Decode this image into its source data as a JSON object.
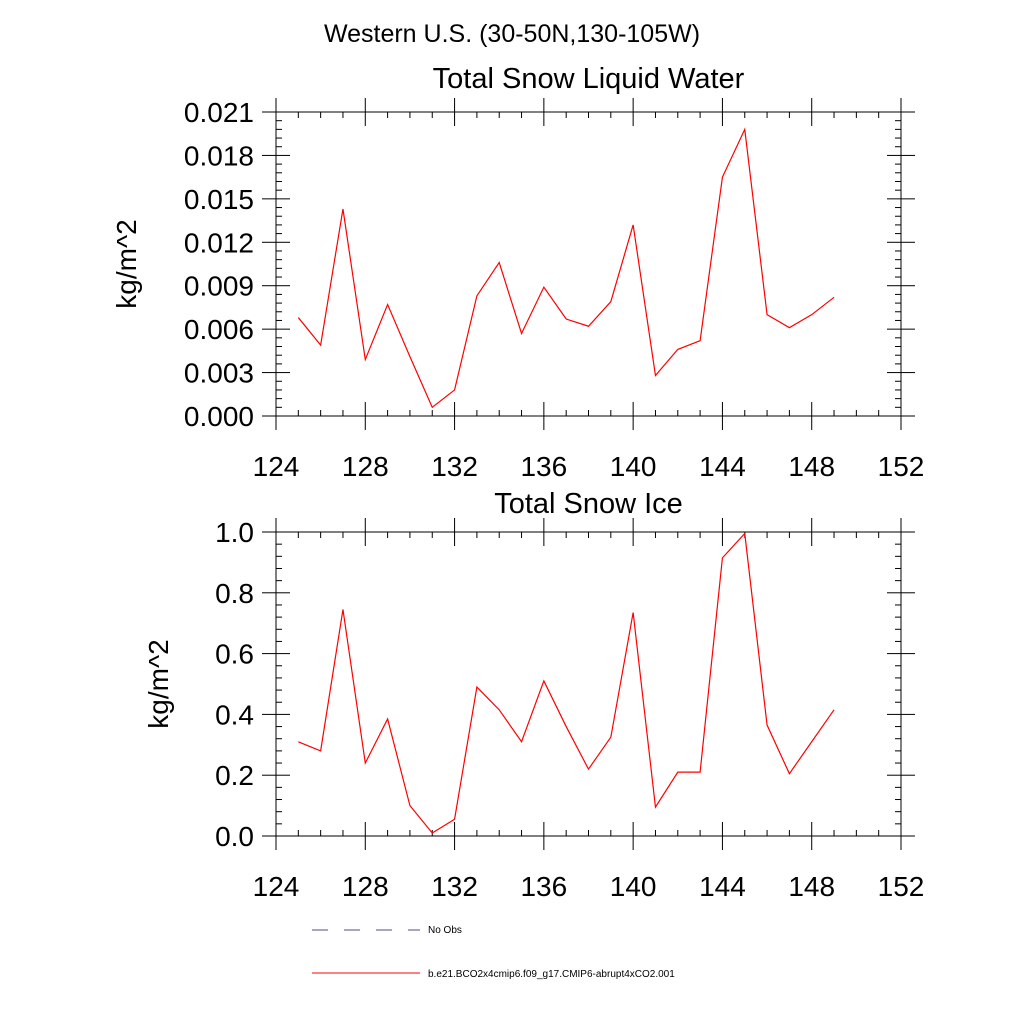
{
  "figure": {
    "suptitle": "Western U.S. (30-50N,130-105W)"
  },
  "chart_data": [
    {
      "type": "line",
      "title": "Total Snow Liquid Water",
      "xlabel": "",
      "ylabel": "kg/m^2",
      "xlim": [
        124,
        152
      ],
      "ylim": [
        0,
        0.021
      ],
      "xticks": [
        124,
        128,
        132,
        136,
        140,
        144,
        148,
        152
      ],
      "xtick_labels": [
        "124",
        "128",
        "132",
        "136",
        "140",
        "144",
        "148",
        "152"
      ],
      "yticks": [
        0,
        0.003,
        0.006,
        0.009,
        0.012,
        0.015,
        0.018,
        0.021
      ],
      "ytick_labels": [
        "0.000",
        "0.003",
        "0.006",
        "0.009",
        "0.012",
        "0.015",
        "0.018",
        "0.021"
      ],
      "x_minor_step": 1,
      "y_minor_step": 0.0006,
      "series": [
        {
          "name": "b.e21.BCO2x4cmip6.f09_g17.CMIP6-abrupt4xCO2.001",
          "color": "#ff0000",
          "x": [
            125,
            126,
            127,
            128,
            129,
            130,
            131,
            132,
            133,
            134,
            135,
            136,
            137,
            138,
            139,
            140,
            141,
            142,
            143,
            144,
            145,
            146,
            147,
            148,
            149
          ],
          "values": [
            0.0068,
            0.0049,
            0.0143,
            0.0039,
            0.0077,
            0.0041,
            0.0006,
            0.0018,
            0.0083,
            0.0106,
            0.0057,
            0.0089,
            0.0067,
            0.0062,
            0.0079,
            0.0132,
            0.0028,
            0.0046,
            0.0052,
            0.0165,
            0.0198,
            0.007,
            0.0061,
            0.007,
            0.0082
          ]
        }
      ]
    },
    {
      "type": "line",
      "title": "Total Snow Ice",
      "xlabel": "",
      "ylabel": "kg/m^2",
      "xlim": [
        124,
        152
      ],
      "ylim": [
        0,
        1.0
      ],
      "xticks": [
        124,
        128,
        132,
        136,
        140,
        144,
        148,
        152
      ],
      "xtick_labels": [
        "124",
        "128",
        "132",
        "136",
        "140",
        "144",
        "148",
        "152"
      ],
      "yticks": [
        0,
        0.2,
        0.4,
        0.6,
        0.8,
        1.0
      ],
      "ytick_labels": [
        "0.0",
        "0.2",
        "0.4",
        "0.6",
        "0.8",
        "1.0"
      ],
      "x_minor_step": 1,
      "y_minor_step": 0.04,
      "series": [
        {
          "name": "b.e21.BCO2x4cmip6.f09_g17.CMIP6-abrupt4xCO2.001",
          "color": "#ff0000",
          "x": [
            125,
            126,
            127,
            128,
            129,
            130,
            131,
            132,
            133,
            134,
            135,
            136,
            137,
            138,
            139,
            140,
            141,
            142,
            143,
            144,
            145,
            146,
            147,
            148,
            149
          ],
          "values": [
            0.31,
            0.28,
            0.745,
            0.24,
            0.385,
            0.1,
            0.01,
            0.055,
            0.49,
            0.415,
            0.31,
            0.51,
            0.36,
            0.22,
            0.325,
            0.735,
            0.095,
            0.21,
            0.21,
            0.915,
            0.995,
            0.365,
            0.205,
            0.31,
            0.415
          ]
        }
      ]
    }
  ],
  "legend": {
    "placement": "bottom-center",
    "entries": [
      {
        "label": "No Obs",
        "style": "dashed",
        "color": "#4d4d8a"
      },
      {
        "label": "b.e21.BCO2x4cmip6.f09_g17.CMIP6-abrupt4xCO2.001",
        "style": "solid",
        "color": "#ff0000"
      }
    ]
  }
}
